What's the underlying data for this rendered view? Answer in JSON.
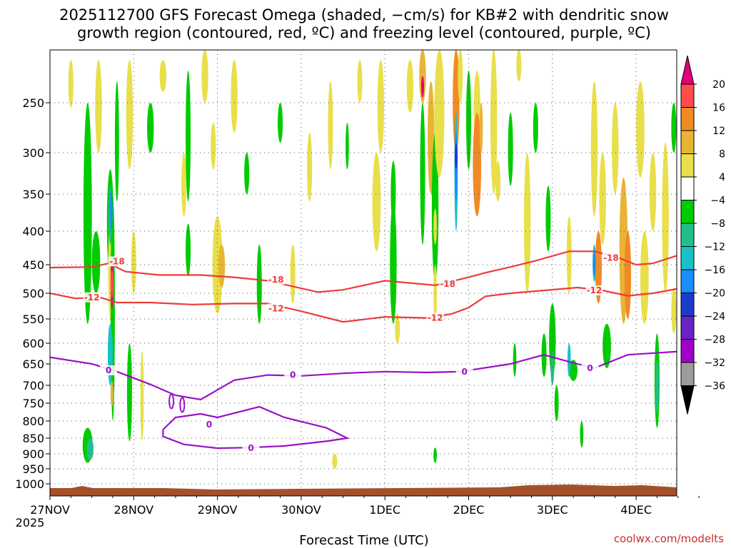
{
  "chart_data": {
    "type": "heatmap",
    "title_lines": [
      "2025112700 GFS Forecast Omega (shaded, −cm/s) for KB#2 with dendritic snow",
      "growth region (contoured, red, ºC) and freezing level (contoured, purple, ºC)"
    ],
    "xlabel": "Forecast Time (UTC)",
    "ylabel": "",
    "x_ticks": [
      "27NOV",
      "28NOV",
      "29NOV",
      "30NOV",
      "1DEC",
      "2DEC",
      "3DEC",
      "4DEC"
    ],
    "x_year_label": "2025",
    "y_ticks": [
      "250",
      "300",
      "350",
      "400",
      "450",
      "500",
      "550",
      "600",
      "650",
      "700",
      "750",
      "800",
      "850",
      "900",
      "950",
      "1000"
    ],
    "x_range_days": [
      0,
      7.5
    ],
    "y_range_hpa": [
      200,
      1025
    ],
    "grid": true,
    "colorbar": {
      "ticks": [
        "20",
        "16",
        "12",
        "8",
        "4",
        "−4",
        "−8",
        "−12",
        "−16",
        "−20",
        "−24",
        "−28",
        "−32",
        "−36"
      ],
      "colors": [
        "#e0007a",
        "#ff4b4b",
        "#f08a25",
        "#e8b435",
        "#e8df4a",
        "#ffffff",
        "#00cc00",
        "#21c08a",
        "#16c2c8",
        "#1a8cff",
        "#1a3ccc",
        "#6a22c2",
        "#a000c8",
        "#9c9c9c",
        "#000000"
      ]
    },
    "contour_series": [
      {
        "name": "dgz -18C",
        "color": "#ee3b3b",
        "label": "-18",
        "points": [
          [
            0,
            455
          ],
          [
            0.5,
            454
          ],
          [
            0.7,
            448
          ],
          [
            0.9,
            462
          ],
          [
            1.3,
            468
          ],
          [
            1.8,
            468
          ],
          [
            2.2,
            472
          ],
          [
            2.6,
            478
          ],
          [
            3.2,
            498
          ],
          [
            3.5,
            494
          ],
          [
            4.0,
            478
          ],
          [
            4.3,
            482
          ],
          [
            4.6,
            486
          ],
          [
            5.0,
            472
          ],
          [
            5.2,
            464
          ],
          [
            5.5,
            454
          ],
          [
            5.8,
            444
          ],
          [
            6.2,
            430
          ],
          [
            6.5,
            430
          ],
          [
            6.8,
            440
          ],
          [
            7.0,
            450
          ],
          [
            7.2,
            448
          ],
          [
            7.5,
            436
          ]
        ],
        "label_at": [
          [
            0.8,
            445
          ],
          [
            2.7,
            476
          ],
          [
            4.75,
            484
          ],
          [
            6.7,
            440
          ]
        ]
      },
      {
        "name": "dgz -12C",
        "color": "#ee3b3b",
        "label": "-12",
        "points": [
          [
            0,
            500
          ],
          [
            0.3,
            510
          ],
          [
            0.6,
            508
          ],
          [
            0.8,
            518
          ],
          [
            1.2,
            518
          ],
          [
            1.7,
            522
          ],
          [
            2.2,
            520
          ],
          [
            2.6,
            520
          ],
          [
            3.0,
            535
          ],
          [
            3.5,
            556
          ],
          [
            4.0,
            546
          ],
          [
            4.5,
            548
          ],
          [
            4.8,
            540
          ],
          [
            5.0,
            528
          ],
          [
            5.2,
            506
          ],
          [
            5.5,
            500
          ],
          [
            5.9,
            495
          ],
          [
            6.3,
            490
          ],
          [
            6.6,
            495
          ],
          [
            6.9,
            505
          ],
          [
            7.2,
            500
          ],
          [
            7.5,
            492
          ]
        ],
        "label_at": [
          [
            0.5,
            508
          ],
          [
            2.7,
            530
          ],
          [
            4.6,
            548
          ],
          [
            6.5,
            495
          ]
        ]
      },
      {
        "name": "freezing level 0C",
        "color": "#9912c8",
        "label": "0",
        "points": [
          [
            0,
            634
          ],
          [
            0.5,
            650
          ],
          [
            0.8,
            668
          ],
          [
            1.2,
            698
          ],
          [
            1.5,
            728
          ],
          [
            1.8,
            740
          ],
          [
            2.2,
            688
          ],
          [
            2.6,
            676
          ],
          [
            3.0,
            678
          ],
          [
            3.5,
            672
          ],
          [
            4.0,
            668
          ],
          [
            4.5,
            670
          ],
          [
            4.9,
            668
          ],
          [
            5.5,
            650
          ],
          [
            5.9,
            628
          ],
          [
            6.2,
            645
          ],
          [
            6.5,
            660
          ],
          [
            6.9,
            628
          ],
          [
            7.5,
            620
          ]
        ],
        "label_at": [
          [
            0.7,
            665
          ],
          [
            2.9,
            676
          ],
          [
            4.95,
            668
          ],
          [
            6.45,
            660
          ]
        ],
        "closed_contour": [
          [
            1.35,
            825
          ],
          [
            1.5,
            790
          ],
          [
            1.8,
            780
          ],
          [
            2.0,
            790
          ],
          [
            2.5,
            760
          ],
          [
            2.8,
            790
          ],
          [
            3.3,
            820
          ],
          [
            3.55,
            850
          ],
          [
            3.3,
            860
          ],
          [
            2.8,
            875
          ],
          [
            2.4,
            880
          ],
          [
            2.0,
            882
          ],
          [
            1.6,
            870
          ],
          [
            1.35,
            845
          ],
          [
            1.35,
            825
          ]
        ],
        "closed_label_at": [
          [
            2.4,
            882
          ],
          [
            1.9,
            810
          ]
        ]
      }
    ]
  },
  "credit": "coolwx.com/modelts"
}
